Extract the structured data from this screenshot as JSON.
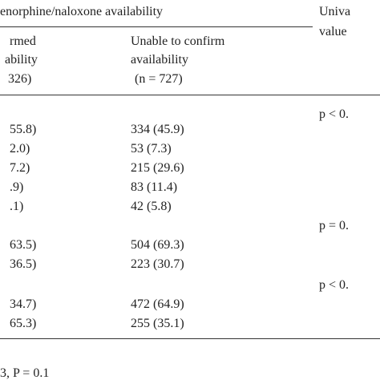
{
  "header": {
    "group": "enorphine/naloxone availability",
    "pvalue_lines": [
      "Univa",
      "value"
    ],
    "col1_lines": [
      "rmed",
      "ability",
      "326)"
    ],
    "col2_lines": [
      "Unable to confirm",
      "availability",
      "(n = 727)"
    ]
  },
  "table": {
    "rows": [
      {
        "p": "p < 0."
      },
      {
        "c1": "55.8)",
        "c2": "334 (45.9)"
      },
      {
        "c1": "2.0)",
        "c2": "53 (7.3)"
      },
      {
        "c1": "7.2)",
        "c2": "215 (29.6)"
      },
      {
        "c1": ".9)",
        "c2": "83 (11.4)"
      },
      {
        "c1": ".1)",
        "c2": "42 (5.8)"
      },
      {
        "p": "p = 0."
      },
      {
        "c1": "63.5)",
        "c2": "504 (69.3)"
      },
      {
        "c1": "36.5)",
        "c2": "223 (30.7)"
      },
      {
        "p": "p < 0."
      },
      {
        "c1": "34.7)",
        "c2": "472 (64.9)"
      },
      {
        "c1": "65.3)",
        "c2": "255 (35.1)"
      }
    ]
  },
  "footer": "3, P = 0.1"
}
